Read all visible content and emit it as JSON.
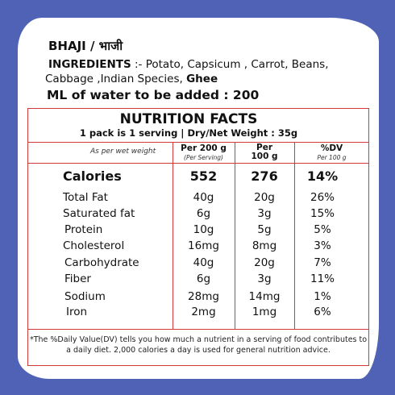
{
  "product": {
    "title": "BHAJI / भाजी"
  },
  "ingredients": {
    "label": "INGREDIENTS",
    "line1": " :- Potato, Capsicum , Carrot, Beans,",
    "line2_prefix": "Cabbage ,Indian Species, ",
    "line2_bold": "Ghee"
  },
  "water": "ML of water to be added : 200",
  "nutrition": {
    "title": "NUTRITION FACTS",
    "serving": "1 pack is 1 serving | Dry/Net  Weight : 35g",
    "header": {
      "basis": "As per wet weight",
      "col1_title": "Per 200 g",
      "col1_sub": "(Per Serving)",
      "col2_title_line1": "Per",
      "col2_title_line2": "100 g",
      "col3_title": "%DV",
      "col3_sub": "Per 100 g"
    },
    "rows": [
      {
        "name": "Calories",
        "per_serving": "552",
        "per_100g": "276",
        "dv": "14%"
      },
      {
        "name": "Total Fat",
        "per_serving": "40g",
        "per_100g": "20g",
        "dv": "26%"
      },
      {
        "name": "Saturated fat",
        "per_serving": "6g",
        "per_100g": "3g",
        "dv": "15%"
      },
      {
        "name": "Protein",
        "per_serving": "10g",
        "per_100g": "5g",
        "dv": "5%"
      },
      {
        "name": "Cholesterol",
        "per_serving": "16mg",
        "per_100g": "8mg",
        "dv": "3%"
      },
      {
        "name": "Carbohydrate",
        "per_serving": "40g",
        "per_100g": "20g",
        "dv": "7%"
      },
      {
        "name": "Fiber",
        "per_serving": "6g",
        "per_100g": "3g",
        "dv": "11%"
      },
      {
        "name": "Sodium",
        "per_serving": "28mg",
        "per_100g": "14mg",
        "dv": "1%"
      },
      {
        "name": "Iron",
        "per_serving": "2mg",
        "per_100g": "1mg",
        "dv": "6%"
      }
    ],
    "footnote": "*The %Daily Value(DV) tells you how much a nutrient in a serving of food contributes to a daily diet. 2,000 calories a day is used for general nutrition advice."
  },
  "colors": {
    "background": "#4f62b6",
    "card": "#ffffff",
    "rule": "#d23a3a"
  }
}
